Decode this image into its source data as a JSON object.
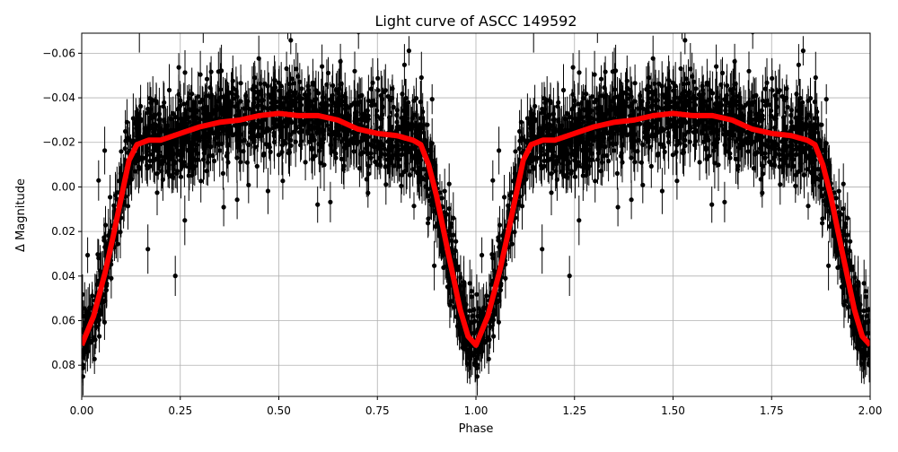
{
  "chart_data": {
    "type": "scatter",
    "title": "Light curve of ASCC 149592",
    "xlabel": "Phase",
    "ylabel": "Δ Magnitude",
    "xlim": [
      0,
      2
    ],
    "ylim": [
      0.094,
      -0.069
    ],
    "y_inverted": true,
    "grid": true,
    "x_ticks": [
      "0.00",
      "0.25",
      "0.50",
      "0.75",
      "1.00",
      "1.25",
      "1.50",
      "1.75",
      "2.00"
    ],
    "y_ticks": [
      "−0.06",
      "−0.04",
      "−0.02",
      "0.00",
      "0.02",
      "0.04",
      "0.06",
      "0.08"
    ],
    "x_tick_values": [
      0,
      0.25,
      0.5,
      0.75,
      1,
      1.25,
      1.5,
      1.75,
      2
    ],
    "y_tick_values": [
      -0.06,
      -0.04,
      -0.02,
      0,
      0.02,
      0.04,
      0.06,
      0.08
    ],
    "observations": {
      "marker": "black dots with error bars",
      "color": "#000000"
    },
    "model": {
      "color": "#ff0000",
      "phase": [
        0,
        0.03,
        0.06,
        0.08,
        0.1,
        0.12,
        0.14,
        0.17,
        0.2,
        0.25,
        0.3,
        0.35,
        0.4,
        0.45,
        0.5,
        0.55,
        0.6,
        0.65,
        0.7,
        0.75,
        0.8,
        0.84,
        0.86,
        0.88,
        0.9,
        0.93,
        0.96,
        0.98,
        1.0
      ],
      "dmag": [
        0.071,
        0.058,
        0.038,
        0.022,
        0.005,
        -0.012,
        -0.019,
        -0.021,
        -0.021,
        -0.024,
        -0.027,
        -0.029,
        -0.03,
        -0.032,
        -0.033,
        -0.032,
        -0.032,
        -0.03,
        -0.026,
        -0.024,
        -0.023,
        -0.021,
        -0.019,
        -0.01,
        0.004,
        0.03,
        0.055,
        0.067,
        0.071
      ]
    }
  }
}
